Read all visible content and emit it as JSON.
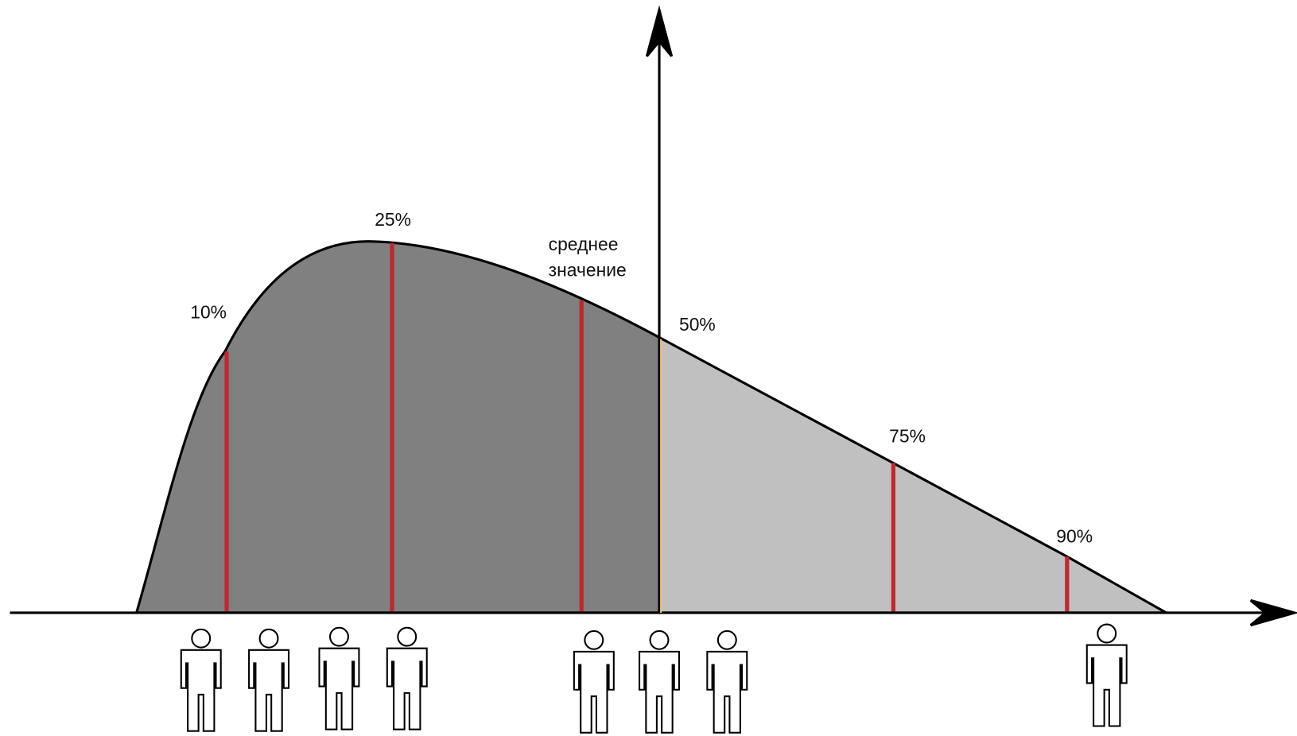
{
  "percentiles": [
    "10%",
    "25%",
    "50%",
    "75%",
    "90%"
  ],
  "mean_label": [
    "среднее",
    "значение"
  ]
}
